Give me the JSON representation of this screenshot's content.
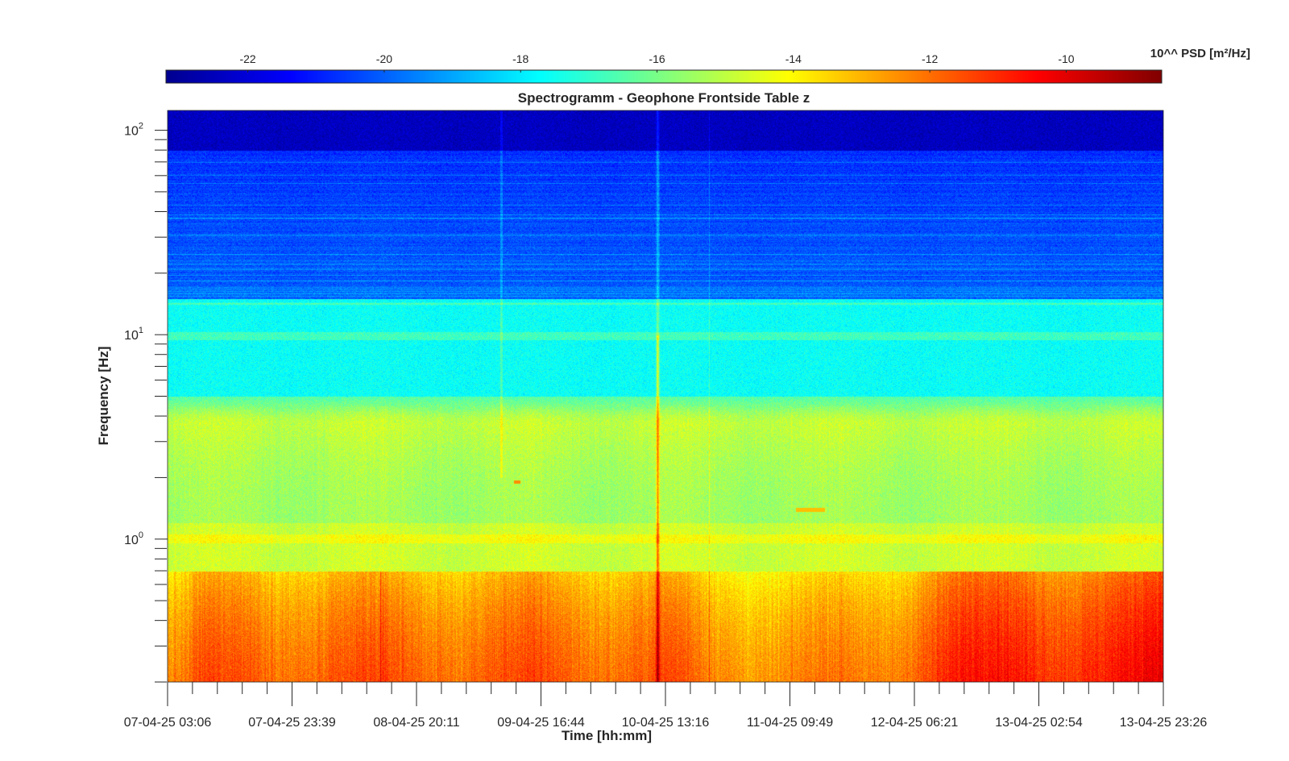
{
  "chart_data": {
    "type": "heatmap",
    "title": "Spectrogramm - Geophone Frontside Table z",
    "xlabel": "Time [hh:mm]",
    "ylabel": "Frequency [Hz]",
    "y_scale": "log",
    "ylim": [
      0.2,
      125
    ],
    "x_tick_labels": [
      "07-04-25 03:06",
      "07-04-25 23:39",
      "08-04-25 20:11",
      "09-04-25 16:44",
      "10-04-25 13:16",
      "11-04-25 09:49",
      "12-04-25 06:21",
      "13-04-25 02:54",
      "13-04-25 23:26"
    ],
    "y_ticks": [
      1,
      10,
      100
    ],
    "y_tick_labels": [
      {
        "base": "10",
        "exp": "0"
      },
      {
        "base": "10",
        "exp": "1"
      },
      {
        "base": "10",
        "exp": "2"
      }
    ],
    "colorbar": {
      "label": "10^^ PSD [m²/Hz]",
      "range": [
        -23.2,
        -8.6
      ],
      "ticks": [
        -22,
        -20,
        -18,
        -16,
        -14,
        -12,
        -10
      ],
      "colormap": "jet"
    },
    "z_description": "log10 PSD; about -22.5 at 80–125 Hz, -20 to -19 from 15–80 Hz, about -17.5 from 5–15 Hz, about -15 to -14 from 1–4 Hz, and -13 to -11.5 below 0.7 Hz",
    "events": [
      {
        "x": "10-04-25 12:31",
        "description": "broadband vertical line, peak near -11 to -10 at low frequencies"
      },
      {
        "x": "09-04-25 09:30",
        "f_hz": 1.9,
        "description": "short spot"
      },
      {
        "x": "11-04-25 05:00",
        "f_hz": 1.4,
        "description": "short spot"
      }
    ]
  },
  "colors": {
    "jet": [
      "#00008f",
      "#0000ff",
      "#00ffff",
      "#ffff00",
      "#ff0000",
      "#800000"
    ],
    "axis": "#262626"
  }
}
